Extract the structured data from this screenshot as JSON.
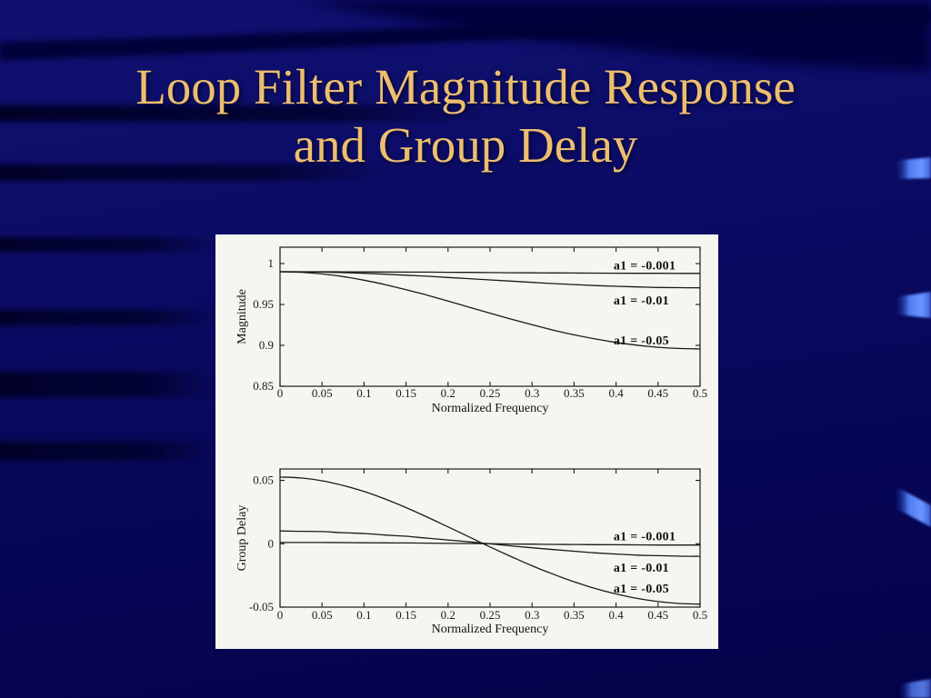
{
  "slide": {
    "title_line1": "Loop Filter Magnitude Response",
    "title_line2": "and Group Delay"
  },
  "colors": {
    "title_gold": "#EDBE6E",
    "background_navy": "#0A0A64",
    "ribbon_blue": "#5B87FF",
    "figure_background": "#F6F5F0",
    "ink": "#1A1A1A"
  },
  "chart_data": [
    {
      "type": "line",
      "title": "",
      "xlabel": "Normalized Frequency",
      "ylabel": "Magnitude",
      "xlim": [
        0,
        0.5
      ],
      "ylim": [
        0.85,
        1.02
      ],
      "grid": false,
      "legend_position": "inline-annotations",
      "xtick_values": [
        0,
        0.05,
        0.1,
        0.15,
        0.2,
        0.25,
        0.3,
        0.35,
        0.4,
        0.45,
        0.5
      ],
      "xtick_labels": [
        "0",
        "0.05",
        "0.1",
        "0.15",
        "0.2",
        "0.25",
        "0.3",
        "0.35",
        "0.4",
        "0.45",
        "0.5"
      ],
      "ytick_values": [
        0.85,
        0.9,
        0.95,
        1
      ],
      "ytick_labels": [
        "0.85",
        "0.9",
        "0.95",
        "1"
      ],
      "x": [
        0,
        0.025,
        0.05,
        0.075,
        0.1,
        0.125,
        0.15,
        0.175,
        0.2,
        0.225,
        0.25,
        0.275,
        0.3,
        0.325,
        0.35,
        0.375,
        0.4,
        0.425,
        0.45,
        0.475,
        0.5
      ],
      "series": [
        {
          "name": "a1 = -0.001",
          "values": [
            0.99,
            0.99,
            0.99,
            0.9899,
            0.9898,
            0.9897,
            0.9896,
            0.9895,
            0.9893,
            0.9892,
            0.989,
            0.9888,
            0.9887,
            0.9885,
            0.9884,
            0.9883,
            0.9882,
            0.9881,
            0.9881,
            0.988,
            0.988
          ]
        },
        {
          "name": "a1 = -0.01",
          "values": [
            0.99,
            0.9899,
            0.9895,
            0.9889,
            0.9881,
            0.987,
            0.9858,
            0.9845,
            0.983,
            0.9815,
            0.98,
            0.9785,
            0.977,
            0.9756,
            0.9743,
            0.9731,
            0.9722,
            0.9714,
            0.9708,
            0.9705,
            0.9703
          ]
        },
        {
          "name": "a1 = -0.05",
          "values": [
            0.99,
            0.9893,
            0.9873,
            0.9841,
            0.9797,
            0.9743,
            0.9681,
            0.9614,
            0.9542,
            0.9467,
            0.9393,
            0.9321,
            0.9252,
            0.9187,
            0.9129,
            0.9079,
            0.9036,
            0.9002,
            0.8977,
            0.8962,
            0.8957
          ]
        }
      ],
      "annotations": [
        {
          "text": "a1 = -0.001",
          "x": 0.397,
          "y": 0.997
        },
        {
          "text": "a1 = -0.01",
          "x": 0.397,
          "y": 0.9545
        },
        {
          "text": "a1 = -0.05",
          "x": 0.397,
          "y": 0.9056
        }
      ]
    },
    {
      "type": "line",
      "title": "",
      "xlabel": "Normalized Frequency",
      "ylabel": "Group Delay",
      "xlim": [
        0,
        0.5
      ],
      "ylim": [
        -0.05,
        0.059
      ],
      "grid": false,
      "legend_position": "inline-annotations",
      "xtick_values": [
        0,
        0.05,
        0.1,
        0.15,
        0.2,
        0.25,
        0.3,
        0.35,
        0.4,
        0.45,
        0.5
      ],
      "xtick_labels": [
        "0",
        "0.05",
        "0.1",
        "0.15",
        "0.2",
        "0.25",
        "0.3",
        "0.35",
        "0.4",
        "0.45",
        "0.5"
      ],
      "ytick_values": [
        -0.05,
        0,
        0.05
      ],
      "ytick_labels": [
        "-0.05",
        "0",
        "0.05"
      ],
      "x": [
        0,
        0.025,
        0.05,
        0.075,
        0.1,
        0.125,
        0.15,
        0.175,
        0.2,
        0.225,
        0.25,
        0.275,
        0.3,
        0.325,
        0.35,
        0.375,
        0.4,
        0.425,
        0.45,
        0.475,
        0.5
      ],
      "series": [
        {
          "name": "a1 = -0.001",
          "values": [
            0.001,
            0.001,
            0.001,
            0.0009,
            0.0008,
            0.0007,
            0.0006,
            0.0005,
            0.0003,
            0.0002,
            0,
            -0.0002,
            -0.0003,
            -0.0005,
            -0.0006,
            -0.0007,
            -0.0008,
            -0.0009,
            -0.001,
            -0.001,
            -0.001
          ]
        },
        {
          "name": "a1 = -0.01",
          "values": [
            0.0101,
            0.0098,
            0.0096,
            0.0087,
            0.0081,
            0.0069,
            0.0059,
            0.0044,
            0.003,
            0.0015,
            -0.0001,
            -0.0017,
            -0.0032,
            -0.0046,
            -0.0059,
            -0.0072,
            -0.0081,
            -0.009,
            -0.0094,
            -0.0098,
            -0.0099
          ]
        },
        {
          "name": "a1 = -0.05",
          "values": [
            0.0526,
            0.0519,
            0.0497,
            0.046,
            0.0412,
            0.0353,
            0.0285,
            0.0211,
            0.0133,
            0.0054,
            -0.0025,
            -0.0101,
            -0.0174,
            -0.024,
            -0.03,
            -0.0353,
            -0.0396,
            -0.0431,
            -0.0456,
            -0.0471,
            -0.0476
          ]
        }
      ],
      "annotations": [
        {
          "text": "a1 = -0.001",
          "x": 0.397,
          "y": 0.0057
        },
        {
          "text": "a1 = -0.01",
          "x": 0.397,
          "y": -0.0193
        },
        {
          "text": "a1 = -0.05",
          "x": 0.397,
          "y": -0.0357
        }
      ]
    }
  ]
}
